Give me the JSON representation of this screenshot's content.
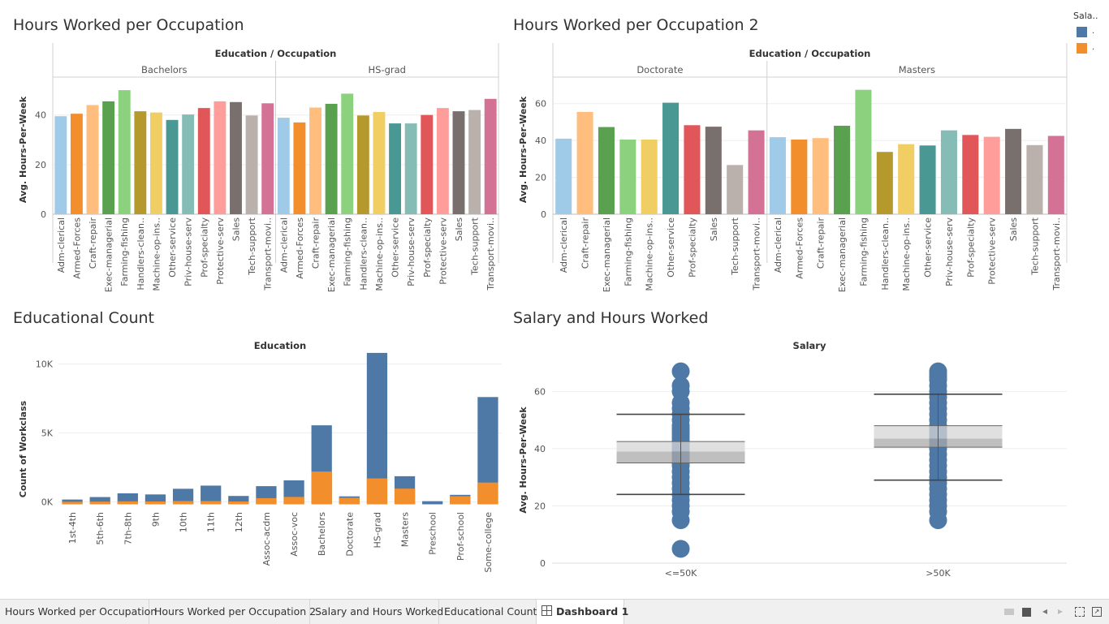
{
  "colors": {
    "tableau20": [
      "#a0cbe8",
      "#f28e2b",
      "#ffbe7d",
      "#59a14f",
      "#8cd17d",
      "#b6992d",
      "#f1ce63",
      "#499894",
      "#86bcb6",
      "#e15759",
      "#ff9d9a",
      "#79706e",
      "#bab0ac",
      "#d37295"
    ],
    "blue": "#4e79a7",
    "orange": "#f28e2b"
  },
  "legend": {
    "title": "Sala..",
    "items": [
      {
        "label": ".",
        "color": "#4e79a7"
      },
      {
        "label": ".",
        "color": "#f28e2b"
      }
    ]
  },
  "tabs": [
    {
      "label": "Hours Worked per Occupation"
    },
    {
      "label": "Hours Worked per Occupation 2"
    },
    {
      "label": "Salary and Hours Worked"
    },
    {
      "label": "Educational Count"
    },
    {
      "label": "Dashboard 1"
    }
  ],
  "chart_data": [
    {
      "type": "bar",
      "title": "Hours Worked per Occupation",
      "header": "Education / Occupation",
      "ylabel": "Avg. Hours-Per-Week",
      "ylim": [
        0,
        52
      ],
      "yticks": [
        0,
        20,
        40
      ],
      "panels": [
        {
          "name": "Bachelors",
          "categories": [
            "Adm-clerical",
            "Armed-Forces",
            "Craft-repair",
            "Exec-managerial",
            "Farming-fishing",
            "Handlers-clean..",
            "Machine-op-ins..",
            "Other-service",
            "Priv-house-serv",
            "Prof-specialty",
            "Protective-serv",
            "Sales",
            "Tech-support",
            "Transport-movi.."
          ],
          "values": [
            39.5,
            40.5,
            44,
            45.5,
            50,
            41.5,
            41,
            38,
            40.2,
            42.8,
            45.5,
            45.2,
            39.8,
            44.7
          ]
        },
        {
          "name": "HS-grad",
          "categories": [
            "Adm-clerical",
            "Armed-Forces",
            "Craft-repair",
            "Exec-managerial",
            "Farming-fishing",
            "Handlers-clean..",
            "Machine-op-ins..",
            "Other-service",
            "Priv-house-serv",
            "Prof-specialty",
            "Protective-serv",
            "Sales",
            "Tech-support",
            "Transport-movi.."
          ],
          "values": [
            38.9,
            37,
            43,
            44.5,
            48.6,
            39.8,
            41.2,
            36.6,
            36.6,
            40,
            42.8,
            41.5,
            42,
            46.5
          ]
        }
      ]
    },
    {
      "type": "bar",
      "title": "Hours Worked per Occupation 2",
      "header": "Education / Occupation",
      "ylabel": "Avg. Hours-Per-Week",
      "ylim": [
        0,
        70
      ],
      "yticks": [
        0,
        20,
        40,
        60
      ],
      "panels": [
        {
          "name": "Doctorate",
          "categories": [
            "Adm-clerical",
            "Craft-repair",
            "Exec-managerial",
            "Farming-fishing",
            "Machine-op-ins..",
            "Other-service",
            "Prof-specialty",
            "Sales",
            "Tech-support",
            "Transport-movi.."
          ],
          "values": [
            41,
            55.5,
            47.3,
            40.5,
            40.5,
            60.5,
            48.3,
            47.5,
            26.7,
            45.5
          ]
        },
        {
          "name": "Masters",
          "categories": [
            "Adm-clerical",
            "Armed-Forces",
            "Craft-repair",
            "Exec-managerial",
            "Farming-fishing",
            "Handlers-clean..",
            "Machine-op-ins..",
            "Other-service",
            "Priv-house-serv",
            "Prof-specialty",
            "Protective-serv",
            "Sales",
            "Tech-support",
            "Transport-movi.."
          ],
          "values": [
            41.8,
            40.5,
            41.3,
            48,
            67.5,
            33.8,
            38,
            37.3,
            45.5,
            43,
            42,
            46.3,
            37.5,
            42.5
          ]
        }
      ]
    },
    {
      "type": "bar",
      "stacked": true,
      "title": "Educational Count",
      "header": "Education",
      "ylabel": "Count of Workclass",
      "ylim": [
        -500,
        10500
      ],
      "yticks": [
        0,
        5000,
        10000
      ],
      "ytick_labels": [
        "0K",
        "5K",
        "10K"
      ],
      "categories": [
        "1st-4th",
        "5th-6th",
        "7th-8th",
        "9th",
        "10th",
        "11th",
        "12th",
        "Assoc-acdm",
        "Assoc-voc",
        "Bachelors",
        "Doctorate",
        "HS-grad",
        "Masters",
        "Preschool",
        "Prof-school",
        "Some-college"
      ],
      "series": [
        {
          "color": "#4e79a7",
          "values": [
            160,
            330,
            580,
            510,
            890,
            1120,
            400,
            870,
            1200,
            3350,
            100,
            9100,
            900,
            50,
            100,
            6200
          ]
        },
        {
          "color": "#f28e2b",
          "values": [
            10,
            20,
            40,
            30,
            60,
            60,
            30,
            270,
            360,
            2200,
            300,
            1700,
            960,
            0,
            410,
            1400
          ]
        }
      ]
    },
    {
      "type": "scatter",
      "boxplot": true,
      "title": "Salary and Hours Worked",
      "header": "Salary",
      "ylabel": "Avg. Hours-Per-Week",
      "ylim": [
        0,
        72
      ],
      "yticks": [
        0,
        20,
        40,
        60
      ],
      "categories": [
        "<=50K",
        ">50K"
      ],
      "groups": [
        {
          "name": "<=50K",
          "points": [
            5,
            15,
            18,
            20,
            22,
            24,
            26,
            28,
            30,
            32,
            34,
            35,
            36,
            37,
            38,
            39,
            40,
            41,
            42,
            43,
            44,
            45,
            46,
            47,
            48,
            50,
            52,
            54,
            56,
            60,
            62,
            67
          ],
          "whisker_low": 24,
          "q1": 35,
          "median": 39,
          "q3": 42.5,
          "whisker_high": 52
        },
        {
          "name": ">50K",
          "points": [
            15,
            18,
            20,
            22,
            24,
            26,
            28,
            30,
            32,
            34,
            36,
            38,
            40,
            41,
            42,
            43,
            44,
            45,
            46,
            47,
            48,
            50,
            52,
            54,
            56,
            58,
            60,
            62,
            64,
            65,
            66,
            67
          ],
          "whisker_low": 29,
          "q1": 40.5,
          "median": 43.5,
          "q3": 48,
          "whisker_high": 59
        }
      ]
    }
  ]
}
